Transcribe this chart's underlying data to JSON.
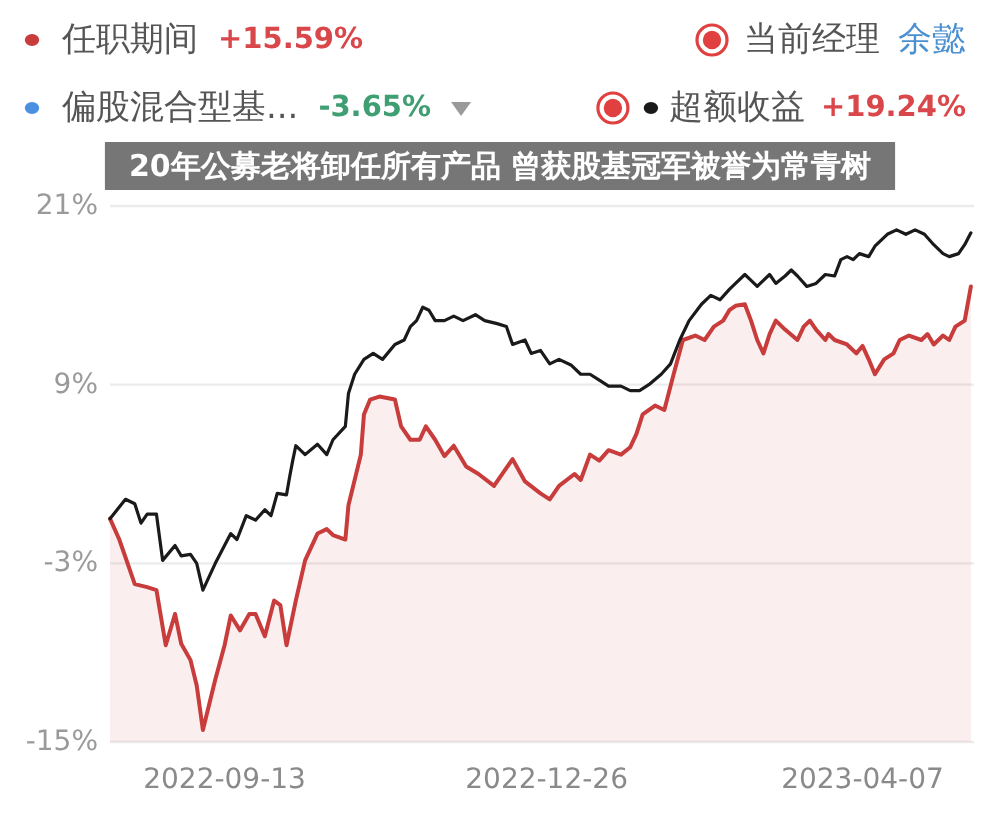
{
  "chart_data": {
    "type": "line",
    "title": "20年公募老将卸任所有产品 曾获股基冠军被誉为常青树",
    "series": [
      {
        "name": "任职期间",
        "color": "#c83c3c",
        "x": [
          "2022-08-07",
          "2022-08-10",
          "2022-08-15",
          "2022-08-19",
          "2022-08-22",
          "2022-08-25",
          "2022-08-28",
          "2022-08-30",
          "2022-09-02",
          "2022-09-04",
          "2022-09-06",
          "2022-09-10",
          "2022-09-13",
          "2022-09-15",
          "2022-09-18",
          "2022-09-21",
          "2022-09-23",
          "2022-09-26",
          "2022-09-29",
          "2022-10-01",
          "2022-10-03",
          "2022-10-06",
          "2022-10-09",
          "2022-10-13",
          "2022-10-16",
          "2022-10-18",
          "2022-10-22",
          "2022-10-23",
          "2022-10-25",
          "2022-10-27",
          "2022-10-28",
          "2022-10-30",
          "2022-11-02",
          "2022-11-07",
          "2022-11-09",
          "2022-11-12",
          "2022-11-15",
          "2022-11-17",
          "2022-11-20",
          "2022-11-23",
          "2022-11-26",
          "2022-11-30",
          "2022-12-04",
          "2022-12-09",
          "2022-12-15",
          "2022-12-19",
          "2022-12-24",
          "2022-12-27",
          "2022-12-30",
          "2023-01-04",
          "2023-01-06",
          "2023-01-09",
          "2023-01-12",
          "2023-01-15",
          "2023-01-19",
          "2023-01-22",
          "2023-01-24",
          "2023-01-26",
          "2023-01-30",
          "2023-02-02",
          "2023-02-05",
          "2023-02-08",
          "2023-02-12",
          "2023-02-15",
          "2023-02-18",
          "2023-02-21",
          "2023-02-23",
          "2023-02-25",
          "2023-02-28",
          "2023-03-02",
          "2023-03-04",
          "2023-03-06",
          "2023-03-08",
          "2023-03-10",
          "2023-03-13",
          "2023-03-17",
          "2023-03-19",
          "2023-03-21",
          "2023-03-23",
          "2023-03-26",
          "2023-03-27",
          "2023-03-29",
          "2023-04-02",
          "2023-04-05",
          "2023-04-07",
          "2023-04-09",
          "2023-04-11",
          "2023-04-14",
          "2023-04-17",
          "2023-04-19",
          "2023-04-22",
          "2023-04-26",
          "2023-04-28",
          "2023-04-30",
          "2023-05-03",
          "2023-05-05",
          "2023-05-07",
          "2023-05-10",
          "2023-05-12"
        ],
        "values": [
          0,
          -1.4,
          -4.4,
          -4.6,
          -4.8,
          -8.5,
          -6.4,
          -8.4,
          -9.5,
          -11.2,
          -14.2,
          -10.8,
          -8.5,
          -6.5,
          -7.5,
          -6.4,
          -6.4,
          -7.9,
          -5.5,
          -5.8,
          -8.5,
          -5.5,
          -2.8,
          -1.0,
          -0.7,
          -1.1,
          -1.4,
          0.9,
          2.6,
          4.3,
          7.0,
          8.0,
          8.2,
          8.0,
          6.2,
          5.3,
          5.3,
          6.2,
          5.3,
          4.2,
          4.9,
          3.5,
          3.0,
          2.2,
          4.0,
          2.5,
          1.7,
          1.3,
          2.2,
          3.0,
          2.6,
          4.3,
          3.9,
          4.6,
          4.3,
          4.8,
          5.7,
          7.0,
          7.6,
          7.3,
          9.7,
          12.0,
          12.3,
          12.0,
          12.9,
          13.3,
          14.0,
          14.3,
          14.4,
          13.3,
          12.0,
          11.1,
          12.4,
          13.3,
          12.7,
          12.0,
          12.9,
          13.3,
          12.7,
          12.0,
          12.4,
          12.0,
          11.7,
          11.1,
          11.6,
          10.7,
          9.7,
          10.7,
          11.1,
          12.0,
          12.3,
          12.0,
          12.4,
          11.7,
          12.3,
          12.0,
          12.9,
          13.3,
          15.6
        ],
        "lower": [
          -15,
          -15,
          -15,
          -15,
          -15,
          -15,
          -15,
          -15,
          -15,
          -15,
          -15,
          -15,
          -15,
          -15,
          -15,
          -15,
          -15,
          -15,
          -15,
          -15,
          -15,
          -15,
          -15,
          -15,
          -15,
          -15,
          -15,
          -15,
          -15,
          -15,
          -15,
          -15,
          -15,
          -15,
          -15,
          -15,
          -15,
          -15,
          -15,
          -15,
          -15,
          -15,
          -15,
          -15,
          -15,
          -15,
          -15,
          -15,
          -15,
          -15,
          -15,
          -15,
          -15,
          -15,
          -15,
          -15,
          -15,
          -15,
          -15,
          -15,
          -15,
          -15,
          -15,
          -15,
          -15,
          -15,
          -15,
          -15,
          -15,
          -15,
          -15,
          -15,
          -15,
          -15,
          -15,
          -15,
          -15,
          -15,
          -15,
          -15,
          -15,
          -15,
          -15,
          -15,
          -15,
          -15,
          -15,
          -15,
          -15,
          -15,
          -15,
          -15,
          -15,
          -15,
          -15,
          -15,
          -15,
          -15,
          -15
        ],
        "upper": [
          0,
          -1.4,
          -4.4,
          -4.6,
          -4.8,
          -8.5,
          -6.4,
          -8.4,
          -9.5,
          -11.2,
          -14.2,
          -10.8,
          -8.5,
          -6.5,
          -7.5,
          -6.4,
          -6.4,
          -7.9,
          -5.5,
          -5.8,
          -8.5,
          -5.5,
          -2.8,
          -1.0,
          -0.7,
          -1.1,
          -1.4,
          0.9,
          2.6,
          4.3,
          7.0,
          8.0,
          8.2,
          8.0,
          6.2,
          5.3,
          5.3,
          6.2,
          5.3,
          4.2,
          4.9,
          3.5,
          3.0,
          2.2,
          4.0,
          2.5,
          1.7,
          1.3,
          2.2,
          3.0,
          2.6,
          4.3,
          3.9,
          4.6,
          4.3,
          4.8,
          5.7,
          7.0,
          7.6,
          7.3,
          9.7,
          12.0,
          12.3,
          12.0,
          12.9,
          13.3,
          14.0,
          14.3,
          14.4,
          13.3,
          12.0,
          11.1,
          12.4,
          13.3,
          12.7,
          12.0,
          12.9,
          13.3,
          12.7,
          12.0,
          12.4,
          12.0,
          11.7,
          11.1,
          11.6,
          10.7,
          9.7,
          10.7,
          11.1,
          12.0,
          12.3,
          12.0,
          12.4,
          11.7,
          12.3,
          12.0,
          12.9,
          13.3,
          15.6
        ]
      },
      {
        "name": "偏股混合型基...",
        "color": "#4a8fe0"
      },
      {
        "name": "超额收益",
        "color": "#1a1a1a",
        "x": [
          "2022-08-07",
          "2022-08-12",
          "2022-08-15",
          "2022-08-17",
          "2022-08-19",
          "2022-08-22",
          "2022-08-24",
          "2022-08-28",
          "2022-08-30",
          "2022-09-02",
          "2022-09-04",
          "2022-09-06",
          "2022-09-10",
          "2022-09-15",
          "2022-09-17",
          "2022-09-20",
          "2022-09-23",
          "2022-09-26",
          "2022-09-28",
          "2022-09-30",
          "2022-10-03",
          "2022-10-04",
          "2022-10-05",
          "2022-10-06",
          "2022-10-09",
          "2022-10-13",
          "2022-10-16",
          "2022-10-18",
          "2022-10-22",
          "2022-10-23",
          "2022-10-25",
          "2022-10-28",
          "2022-10-31",
          "2022-11-03",
          "2022-11-07",
          "2022-11-10",
          "2022-11-12",
          "2022-11-14",
          "2022-11-16",
          "2022-11-18",
          "2022-11-20",
          "2022-11-23",
          "2022-11-26",
          "2022-11-29",
          "2022-12-03",
          "2022-12-06",
          "2022-12-10",
          "2022-12-13",
          "2022-12-15",
          "2022-12-19",
          "2022-12-21",
          "2022-12-24",
          "2022-12-27",
          "2022-12-30",
          "2023-01-03",
          "2023-01-06",
          "2023-01-09",
          "2023-01-12",
          "2023-01-15",
          "2023-01-19",
          "2023-01-22",
          "2023-01-25",
          "2023-01-28",
          "2023-02-01",
          "2023-02-04",
          "2023-02-07",
          "2023-02-10",
          "2023-02-14",
          "2023-02-17",
          "2023-02-20",
          "2023-02-23",
          "2023-02-25",
          "2023-02-28",
          "2023-03-02",
          "2023-03-04",
          "2023-03-06",
          "2023-03-08",
          "2023-03-10",
          "2023-03-13",
          "2023-03-15",
          "2023-03-17",
          "2023-03-20",
          "2023-03-23",
          "2023-03-26",
          "2023-03-29",
          "2023-03-31",
          "2023-04-02",
          "2023-04-04",
          "2023-04-06",
          "2023-04-09",
          "2023-04-11",
          "2023-04-15",
          "2023-04-18",
          "2023-04-21",
          "2023-04-24",
          "2023-04-27",
          "2023-04-30",
          "2023-05-03",
          "2023-05-05",
          "2023-05-08",
          "2023-05-10",
          "2023-05-12"
        ],
        "values": [
          0,
          1.3,
          1.0,
          -0.3,
          0.3,
          0.3,
          -2.8,
          -1.8,
          -2.5,
          -2.4,
          -3.0,
          -4.8,
          -3.0,
          -1.0,
          -1.4,
          0.2,
          -0.1,
          0.6,
          0.2,
          1.7,
          1.6,
          2.8,
          3.9,
          4.9,
          4.3,
          5.0,
          4.3,
          5.3,
          6.2,
          8.4,
          9.7,
          10.7,
          11.1,
          10.7,
          11.7,
          12.0,
          12.9,
          13.3,
          14.2,
          14.0,
          13.3,
          13.3,
          13.6,
          13.3,
          13.7,
          13.3,
          13.1,
          12.9,
          11.7,
          12.0,
          11.1,
          11.3,
          10.4,
          10.7,
          10.3,
          9.7,
          9.7,
          9.3,
          8.9,
          8.9,
          8.6,
          8.6,
          9.0,
          9.7,
          10.4,
          12.0,
          13.3,
          14.4,
          15.0,
          14.7,
          15.4,
          15.8,
          16.4,
          16.0,
          15.6,
          16.0,
          16.4,
          15.8,
          16.3,
          16.7,
          16.3,
          15.6,
          15.8,
          16.4,
          16.3,
          17.4,
          17.6,
          17.4,
          17.8,
          17.6,
          18.3,
          19.1,
          19.4,
          19.1,
          19.4,
          19.1,
          18.4,
          17.8,
          17.6,
          17.8,
          18.4,
          19.2
        ]
      }
    ],
    "xlim": [
      "2022-08-07",
      "2023-05-13"
    ],
    "xticks": [
      {
        "value": "2022-09-13",
        "label": "2022-09-13"
      },
      {
        "value": "2022-12-26",
        "label": "2022-12-26"
      },
      {
        "value": "2023-04-07",
        "label": "2023-04-07"
      }
    ],
    "ylim": [
      -15,
      21
    ],
    "yticks": [
      {
        "value": -15,
        "label": "-15%"
      },
      {
        "value": -3,
        "label": "-3%"
      },
      {
        "value": 9,
        "label": "9%"
      },
      {
        "value": 21,
        "label": "21%"
      }
    ],
    "grid": "y",
    "legend": "top",
    "annotations": [
      "+15.59%",
      "-3.65%",
      "+19.24%",
      "当前经理",
      "余懿"
    ]
  }
}
